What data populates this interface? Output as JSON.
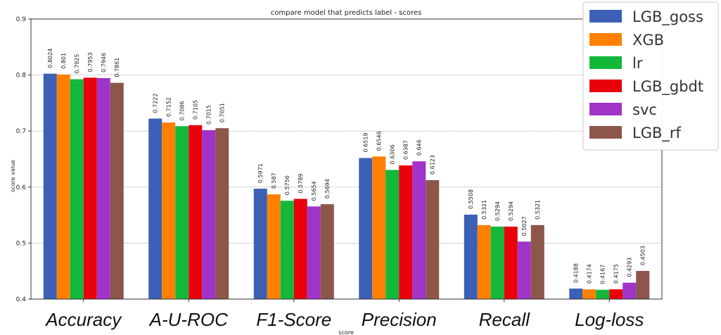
{
  "chart_data": {
    "type": "bar",
    "title": "compare model that predicts label - scores",
    "xlabel": "score",
    "ylabel": "score value",
    "ylim": [
      0.4,
      0.9
    ],
    "yticks": [
      "0.4",
      "0.5",
      "0.6",
      "0.7",
      "0.8",
      "0.9"
    ],
    "categories": [
      "Accuracy",
      "A-U-ROC",
      "F1-Score",
      "Precision",
      "Recall",
      "Log-loss"
    ],
    "grid": "horizontal",
    "legend_position": "top-right",
    "series": [
      {
        "name": "LGB_goss",
        "color": "#3b60b6",
        "values": [
          0.8024,
          0.7222,
          0.5971,
          0.6519,
          0.5508,
          0.4188
        ],
        "labels": [
          "0.8024",
          "0.7222",
          "0.5971",
          "0.6519",
          "0.5508",
          "0.4188"
        ]
      },
      {
        "name": "XGB",
        "color": "#ff8000",
        "values": [
          0.801,
          0.7152,
          0.587,
          0.6546,
          0.5321,
          0.4174
        ],
        "labels": [
          "0.801",
          "0.7152",
          "0.587",
          "0.6546",
          "0.5321",
          "0.4174"
        ]
      },
      {
        "name": "lr",
        "color": "#11b83a",
        "values": [
          0.7925,
          0.7086,
          0.5756,
          0.6306,
          0.5294,
          0.4167
        ],
        "labels": [
          "0.7925",
          "0.7086",
          "0.5756",
          "0.6306",
          "0.5294",
          "0.4167"
        ]
      },
      {
        "name": "LGB_gbdt",
        "color": "#e8000b",
        "values": [
          0.7953,
          0.7105,
          0.5789,
          0.6387,
          0.5294,
          0.4175
        ],
        "labels": [
          "0.7953",
          "0.7105",
          "0.5789",
          "0.6387",
          "0.5294",
          "0.4175"
        ]
      },
      {
        "name": "svc",
        "color": "#a033c8",
        "values": [
          0.7946,
          0.7015,
          0.5654,
          0.646,
          0.5027,
          0.4293
        ],
        "labels": [
          "0.7946",
          "0.7015",
          "0.5654",
          "0.646",
          "0.5027",
          "0.4293"
        ]
      },
      {
        "name": "LGB_rf",
        "color": "#8c564b",
        "values": [
          0.7861,
          0.7051,
          0.5694,
          0.6123,
          0.5321,
          0.4503
        ],
        "labels": [
          "0.7861",
          "0.7051",
          "0.5694",
          "0.6123",
          "0.5321",
          "0.4503"
        ]
      }
    ]
  }
}
